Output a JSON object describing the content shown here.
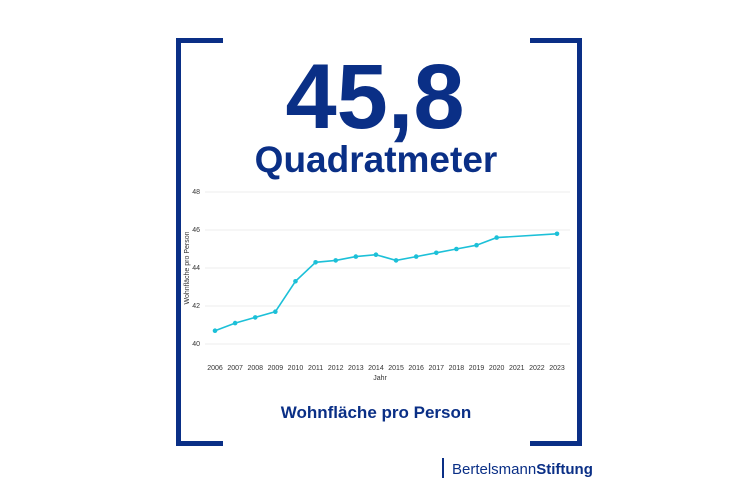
{
  "headline": "45,8",
  "unit": "Quadratmeter",
  "chart_data": {
    "type": "line",
    "title": "Wohnfläche pro Person",
    "x_label": "Jahr",
    "y_label": "Wohnfläche pro Person",
    "x": [
      2006,
      2007,
      2008,
      2009,
      2010,
      2011,
      2012,
      2013,
      2014,
      2015,
      2016,
      2017,
      2018,
      2019,
      2020,
      2023
    ],
    "values": [
      40.7,
      41.1,
      41.4,
      41.7,
      43.3,
      44.3,
      44.4,
      44.6,
      44.7,
      44.4,
      44.6,
      44.8,
      45.0,
      45.2,
      45.6,
      45.8
    ],
    "color": "#1cc0d8",
    "xlim": [
      2006,
      2023
    ],
    "xticks": [
      2006,
      2007,
      2008,
      2009,
      2010,
      2011,
      2012,
      2013,
      2014,
      2015,
      2016,
      2017,
      2018,
      2019,
      2020,
      2021,
      2022,
      2023
    ],
    "ylim": [
      40,
      48
    ],
    "yticks": [
      40,
      42,
      44,
      46,
      48
    ],
    "grid": true
  },
  "logo": {
    "part1": "Bertelsmann",
    "part2": "Stiftung"
  }
}
